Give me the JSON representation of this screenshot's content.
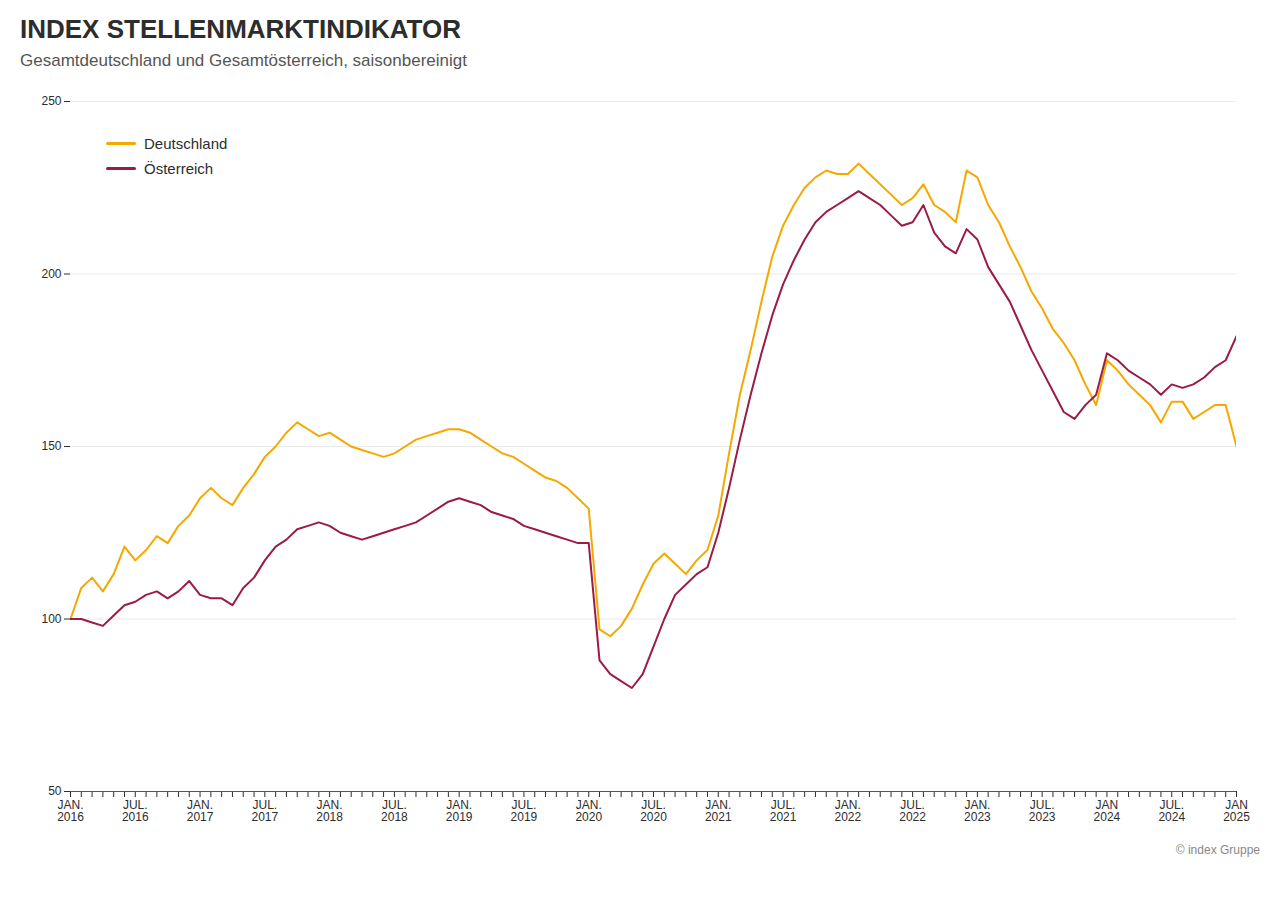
{
  "chart_data": {
    "type": "line",
    "title": "INDEX STELLENMARKTINDIKATOR",
    "subtitle": "Gesamtdeutschland und Gesamtösterreich, saisonbereinigt",
    "caption": "© index Gruppe",
    "categories": [
      "JAN.\n2016",
      null,
      null,
      null,
      null,
      null,
      "JUL.\n2016",
      null,
      null,
      null,
      null,
      null,
      "JAN.\n2017",
      null,
      null,
      null,
      null,
      null,
      "JUL.\n2017",
      null,
      null,
      null,
      null,
      null,
      "JAN.\n2018",
      null,
      null,
      null,
      null,
      null,
      "JUL.\n2018",
      null,
      null,
      null,
      null,
      null,
      "JAN.\n2019",
      null,
      null,
      null,
      null,
      null,
      "JUL.\n2019",
      null,
      null,
      null,
      null,
      null,
      "JAN.\n2020",
      null,
      null,
      null,
      null,
      null,
      "JUL.\n2020",
      null,
      null,
      null,
      null,
      null,
      "JAN.\n2021",
      null,
      null,
      null,
      null,
      null,
      "JUL.\n2021",
      null,
      null,
      null,
      null,
      null,
      "JAN.\n2022",
      null,
      null,
      null,
      null,
      null,
      "JUL.\n2022",
      null,
      null,
      null,
      null,
      null,
      "JAN.\n2023",
      null,
      null,
      null,
      null,
      null,
      "JUL.\n2023",
      null,
      null,
      null,
      null,
      null,
      "JAN\n2024",
      null,
      null,
      null,
      null,
      null,
      "JUL.\n2024",
      null,
      null,
      null,
      null,
      null,
      "JAN\n2025"
    ],
    "series": [
      {
        "name": "Deutschland",
        "color": "#F5A800",
        "values": [
          100,
          109,
          112,
          108,
          113,
          121,
          117,
          120,
          124,
          122,
          127,
          130,
          135,
          138,
          135,
          133,
          138,
          142,
          147,
          150,
          154,
          157,
          155,
          153,
          154,
          152,
          150,
          149,
          148,
          147,
          148,
          150,
          152,
          153,
          154,
          155,
          155,
          154,
          152,
          150,
          148,
          147,
          145,
          143,
          141,
          140,
          138,
          135,
          132,
          97,
          95,
          98,
          103,
          110,
          116,
          119,
          116,
          113,
          117,
          120,
          130,
          148,
          165,
          178,
          192,
          205,
          214,
          220,
          225,
          228,
          230,
          229,
          229,
          232,
          229,
          226,
          223,
          220,
          222,
          226,
          220,
          218,
          215,
          230,
          228,
          220,
          215,
          208,
          202,
          195,
          190,
          184,
          180,
          175,
          168,
          162,
          175,
          172,
          168,
          165,
          162,
          157,
          163,
          163,
          158,
          160,
          162,
          162,
          150
        ]
      },
      {
        "name": "Österreich",
        "color": "#9B1B45",
        "values": [
          100,
          100,
          99,
          98,
          101,
          104,
          105,
          107,
          108,
          106,
          108,
          111,
          107,
          106,
          106,
          104,
          109,
          112,
          117,
          121,
          123,
          126,
          127,
          128,
          127,
          125,
          124,
          123,
          124,
          125,
          126,
          127,
          128,
          130,
          132,
          134,
          135,
          134,
          133,
          131,
          130,
          129,
          127,
          126,
          125,
          124,
          123,
          122,
          122,
          88,
          84,
          82,
          80,
          84,
          92,
          100,
          107,
          110,
          113,
          115,
          125,
          138,
          152,
          165,
          177,
          188,
          197,
          204,
          210,
          215,
          218,
          220,
          222,
          224,
          222,
          220,
          217,
          214,
          215,
          220,
          212,
          208,
          206,
          213,
          210,
          202,
          197,
          192,
          185,
          178,
          172,
          166,
          160,
          158,
          162,
          165,
          177,
          175,
          172,
          170,
          168,
          165,
          168,
          167,
          168,
          170,
          173,
          175,
          182
        ]
      }
    ],
    "ylim": [
      50,
      250
    ],
    "yticks": [
      50,
      100,
      150,
      200,
      250
    ],
    "grid": true,
    "legend": "upper left"
  }
}
